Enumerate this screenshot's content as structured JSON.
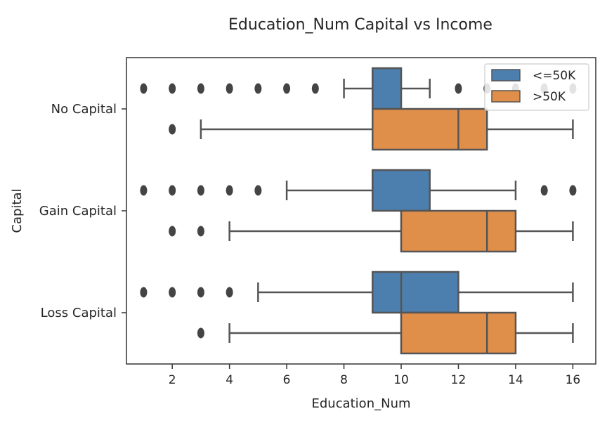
{
  "chart_data": {
    "type": "boxplot",
    "orientation": "horizontal",
    "title": "Education_Num Capital vs Income",
    "xlabel": "Education_Num",
    "ylabel": "Capital",
    "xlim": [
      0.4,
      16.8
    ],
    "xticks": [
      2,
      4,
      6,
      8,
      10,
      12,
      14,
      16
    ],
    "categories": [
      "No Capital",
      "Gain Capital",
      "Loss Capital"
    ],
    "legend": {
      "placement": "top-right"
    },
    "grid": false,
    "series": [
      {
        "name": "<=50K",
        "color": "#4c7fad",
        "boxes": [
          {
            "category": "No Capital",
            "whislo": 8,
            "q1": 9,
            "med": 9,
            "q3": 10,
            "whishi": 11,
            "fliers": [
              1,
              2,
              3,
              4,
              5,
              6,
              7,
              12,
              13,
              14,
              15,
              16
            ]
          },
          {
            "category": "Gain Capital",
            "whislo": 6,
            "q1": 9,
            "med": 9,
            "q3": 11,
            "whishi": 14,
            "fliers": [
              1,
              2,
              3,
              4,
              5,
              15,
              16
            ]
          },
          {
            "category": "Loss Capital",
            "whislo": 5,
            "q1": 9,
            "med": 10,
            "q3": 12,
            "whishi": 16,
            "fliers": [
              1,
              2,
              3,
              4
            ]
          }
        ]
      },
      {
        "name": ">50K",
        "color": "#e08f4b",
        "boxes": [
          {
            "category": "No Capital",
            "whislo": 3,
            "q1": 9,
            "med": 12,
            "q3": 13,
            "whishi": 16,
            "fliers": [
              2
            ]
          },
          {
            "category": "Gain Capital",
            "whislo": 4,
            "q1": 10,
            "med": 13,
            "q3": 14,
            "whishi": 16,
            "fliers": [
              2,
              3
            ]
          },
          {
            "category": "Loss Capital",
            "whislo": 4,
            "q1": 10,
            "med": 13,
            "q3": 14,
            "whishi": 16,
            "fliers": [
              3
            ]
          }
        ]
      }
    ]
  }
}
